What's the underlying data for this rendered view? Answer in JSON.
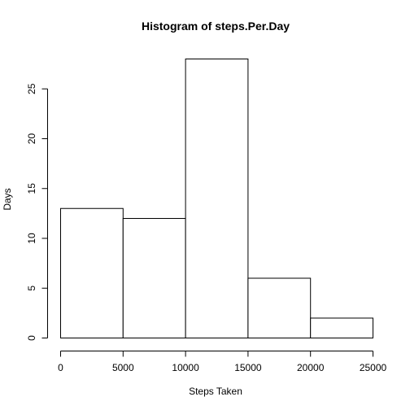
{
  "chart_data": {
    "type": "bar",
    "title": "Histogram of steps.Per.Day",
    "xlabel": "Steps Taken",
    "ylabel": "Days",
    "bins": [
      {
        "from": 0,
        "to": 5000,
        "count": 13
      },
      {
        "from": 5000,
        "to": 10000,
        "count": 12
      },
      {
        "from": 10000,
        "to": 15000,
        "count": 28
      },
      {
        "from": 15000,
        "to": 20000,
        "count": 6
      },
      {
        "from": 20000,
        "to": 25000,
        "count": 2
      }
    ],
    "xlim": [
      0,
      25000
    ],
    "ylim": [
      0,
      28
    ],
    "x_ticks": [
      0,
      5000,
      10000,
      15000,
      20000,
      25000
    ],
    "y_ticks": [
      0,
      5,
      10,
      15,
      20,
      25
    ],
    "grid": false,
    "legend": "none"
  },
  "colors": {
    "bar_fill": "#ffffff",
    "bar_stroke": "#000000",
    "text": "#000000",
    "background": "#ffffff"
  }
}
